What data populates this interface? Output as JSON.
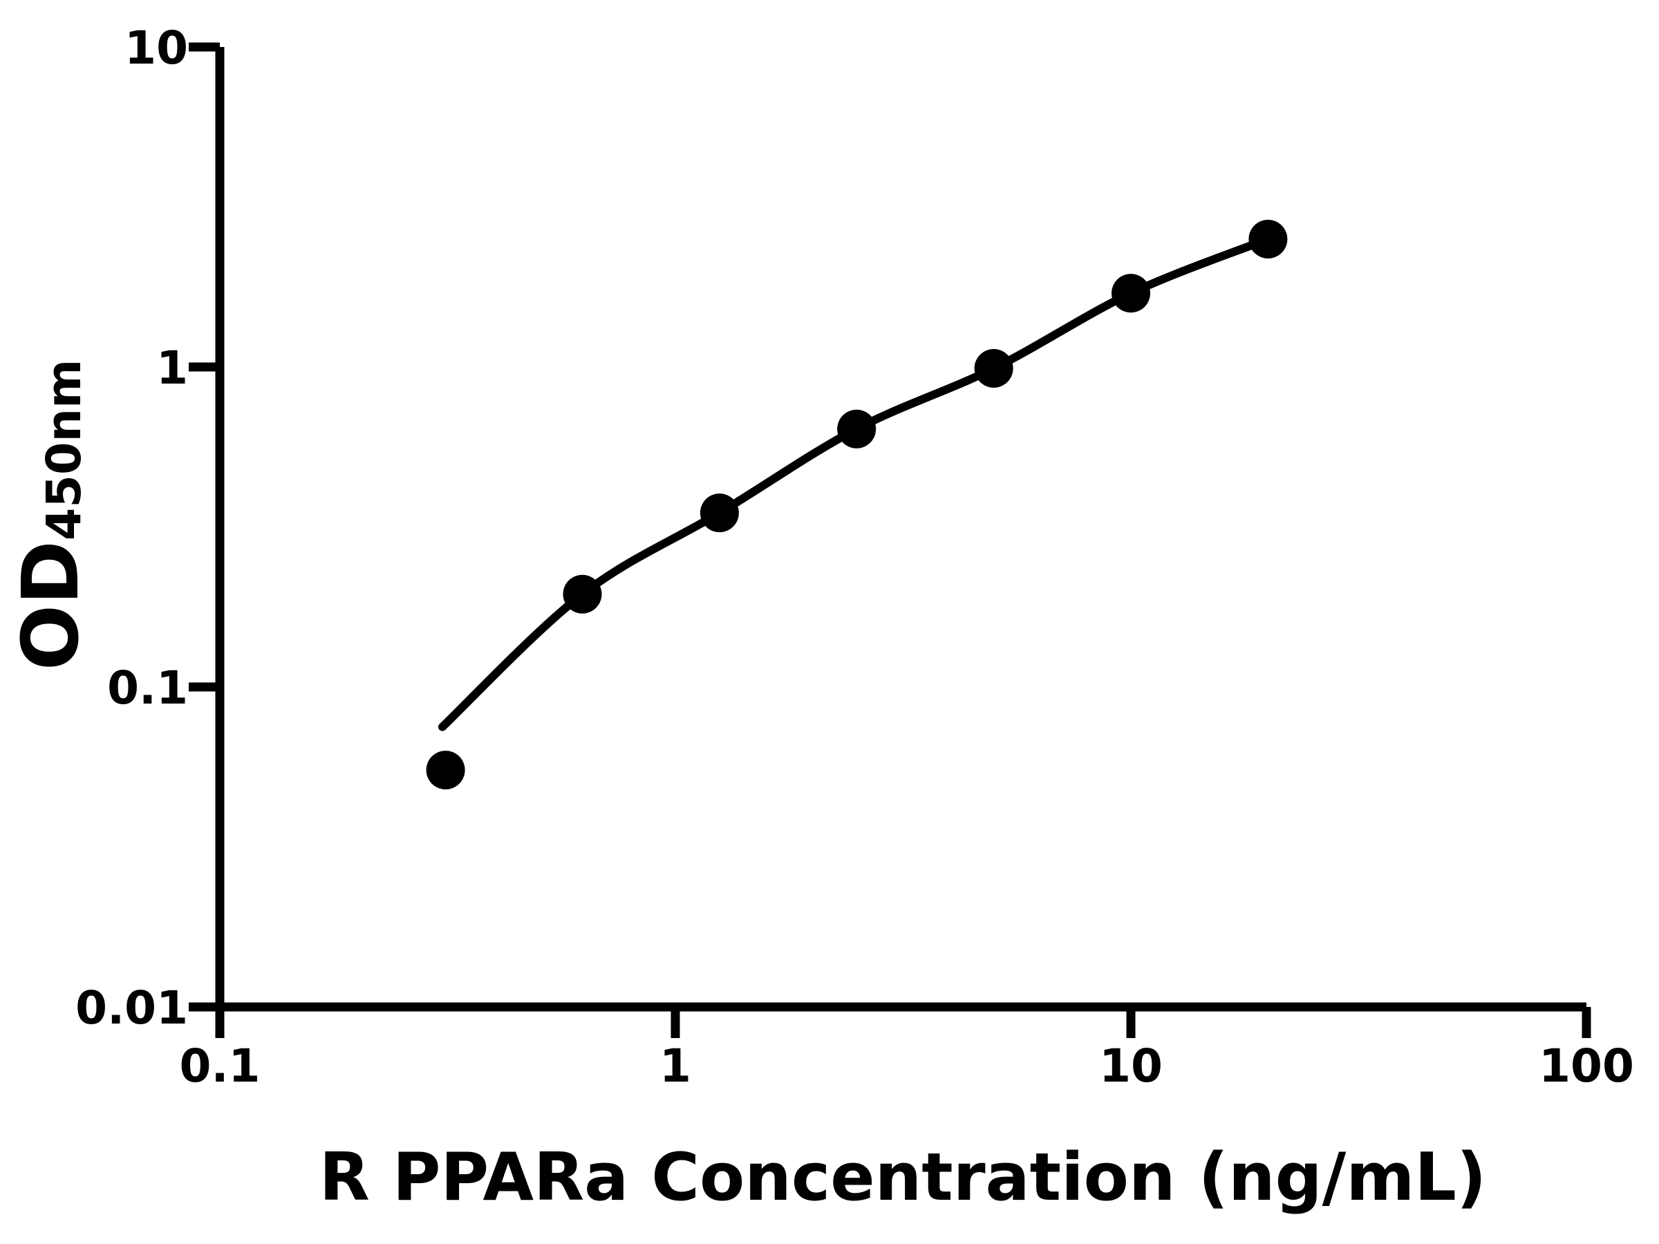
{
  "chart_data": {
    "type": "scatter",
    "title": "",
    "xlabel": "R PPARa Concentration (ng/mL)",
    "ylabel": "OD450nm",
    "ylabel_main": "OD",
    "ylabel_sub": "450nm",
    "x_scale": "log",
    "y_scale": "log",
    "xlim": [
      0.1,
      100
    ],
    "ylim": [
      0.01,
      10
    ],
    "x_ticks": [
      0.1,
      1,
      10,
      100
    ],
    "x_tick_labels": [
      "0.1",
      "1",
      "10",
      "100"
    ],
    "y_ticks": [
      0.01,
      0.1,
      1,
      10
    ],
    "y_tick_labels": [
      "0.01",
      "0.1",
      "1",
      "10"
    ],
    "grid": false,
    "legend": false,
    "colors": {
      "axis": "#000000",
      "marker": "#000000",
      "curve": "#000000",
      "background": "#ffffff"
    },
    "series": [
      {
        "marker": "circle",
        "points": [
          {
            "x": 0.313,
            "y": 0.055
          },
          {
            "x": 0.625,
            "y": 0.195
          },
          {
            "x": 1.25,
            "y": 0.35
          },
          {
            "x": 2.5,
            "y": 0.64
          },
          {
            "x": 5,
            "y": 0.99
          },
          {
            "x": 10,
            "y": 1.7
          },
          {
            "x": 20,
            "y": 2.51
          }
        ]
      }
    ],
    "fit_curve": {
      "points": [
        {
          "x": 0.308,
          "y": 0.075
        },
        {
          "x": 0.625,
          "y": 0.195
        },
        {
          "x": 1.25,
          "y": 0.35
        },
        {
          "x": 2.5,
          "y": 0.64
        },
        {
          "x": 5,
          "y": 0.99
        },
        {
          "x": 10,
          "y": 1.7
        },
        {
          "x": 20,
          "y": 2.51
        }
      ]
    }
  }
}
